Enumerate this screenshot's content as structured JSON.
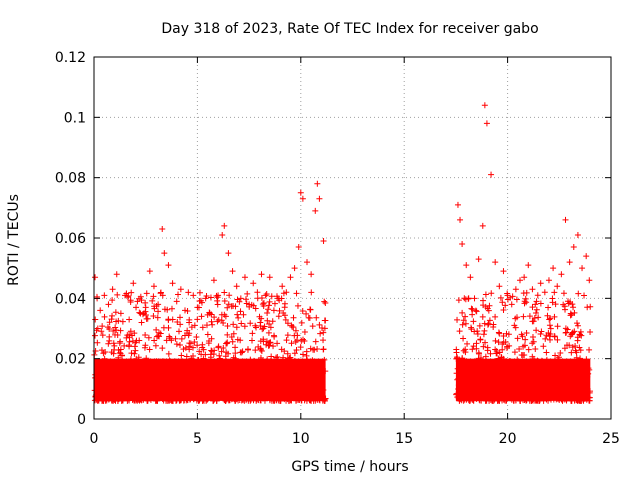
{
  "chart_data": {
    "type": "scatter",
    "title": "Day 318 of 2023, Rate Of TEC Index for receiver gabo",
    "xlabel": "GPS time / hours",
    "ylabel": "ROTI / TECUs",
    "xlim": [
      0,
      25
    ],
    "ylim": [
      0,
      0.12
    ],
    "xticks": [
      "0",
      "5",
      "10",
      "15",
      "20",
      "25"
    ],
    "yticks": [
      "0",
      "0.02",
      "0.04",
      "0.06",
      "0.08",
      "0.1",
      "0.12"
    ],
    "grid": true,
    "marker": "+",
    "color": "#ff0000",
    "data_gap_hours": [
      11.2,
      17.5
    ],
    "x": [
      0.05,
      0.15,
      0.3,
      0.5,
      0.7,
      0.9,
      1.1,
      1.3,
      1.5,
      1.7,
      1.9,
      2.1,
      2.3,
      2.5,
      2.7,
      2.9,
      3.1,
      3.3,
      3.4,
      3.6,
      3.8,
      4.0,
      4.2,
      4.4,
      4.6,
      4.8,
      5.0,
      5.2,
      5.4,
      5.6,
      5.8,
      6.0,
      6.2,
      6.3,
      6.5,
      6.7,
      6.9,
      7.1,
      7.3,
      7.5,
      7.7,
      7.9,
      8.1,
      8.3,
      8.5,
      8.7,
      8.9,
      9.1,
      9.3,
      9.5,
      9.7,
      9.9,
      10.0,
      10.1,
      10.3,
      10.5,
      10.7,
      10.8,
      10.9,
      11.1,
      17.6,
      17.7,
      17.8,
      18.0,
      18.2,
      18.4,
      18.6,
      18.8,
      18.9,
      19.0,
      19.2,
      19.4,
      19.6,
      19.8,
      20.0,
      20.2,
      20.4,
      20.6,
      20.8,
      21.0,
      21.2,
      21.4,
      21.6,
      21.8,
      22.0,
      22.2,
      22.4,
      22.6,
      22.8,
      23.0,
      23.2,
      23.4,
      23.6,
      23.8,
      23.95
    ],
    "y": [
      0.047,
      0.04,
      0.036,
      0.041,
      0.038,
      0.043,
      0.048,
      0.035,
      0.041,
      0.033,
      0.045,
      0.039,
      0.032,
      0.037,
      0.049,
      0.044,
      0.038,
      0.063,
      0.055,
      0.051,
      0.045,
      0.039,
      0.043,
      0.036,
      0.032,
      0.041,
      0.037,
      0.034,
      0.04,
      0.035,
      0.046,
      0.041,
      0.061,
      0.064,
      0.055,
      0.049,
      0.044,
      0.04,
      0.047,
      0.038,
      0.045,
      0.042,
      0.048,
      0.041,
      0.047,
      0.036,
      0.04,
      0.044,
      0.042,
      0.047,
      0.05,
      0.057,
      0.075,
      0.073,
      0.052,
      0.048,
      0.069,
      0.078,
      0.073,
      0.059,
      0.071,
      0.066,
      0.058,
      0.051,
      0.047,
      0.04,
      0.053,
      0.064,
      0.104,
      0.098,
      0.081,
      0.052,
      0.044,
      0.049,
      0.041,
      0.038,
      0.043,
      0.046,
      0.047,
      0.051,
      0.043,
      0.039,
      0.045,
      0.042,
      0.046,
      0.05,
      0.044,
      0.048,
      0.066,
      0.052,
      0.057,
      0.061,
      0.05,
      0.054,
      0.046
    ]
  }
}
